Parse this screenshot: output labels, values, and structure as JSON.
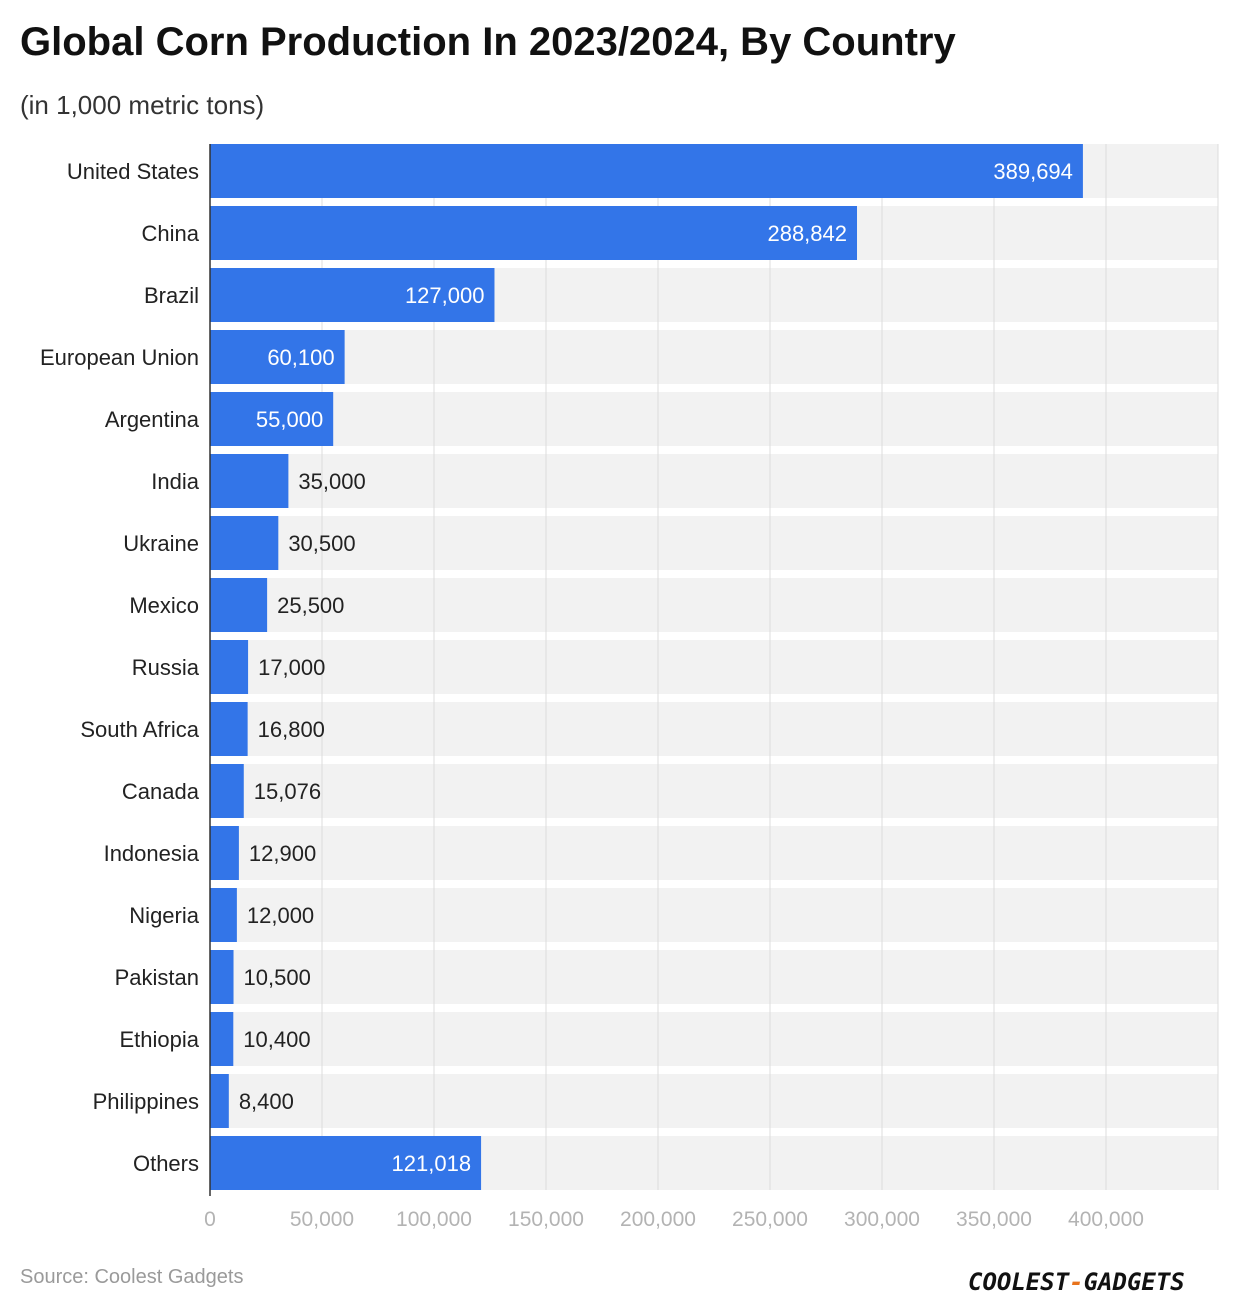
{
  "header": {
    "title": "Global Corn Production In 2023/2024, By Country",
    "subtitle": "(in 1,000 metric tons)"
  },
  "footer": {
    "source": "Source: Coolest Gadgets",
    "logo_left": "COOLEST",
    "logo_dash": "-",
    "logo_right": "GADGETS"
  },
  "colors": {
    "bar": "#3375e8",
    "band": "#f2f2f2",
    "grid": "#dcdcdc",
    "tick_label": "#b3b3b3",
    "label_inside": "#ffffff",
    "label_outside": "#222222",
    "logo_accent": "#e8731c"
  },
  "chart_data": {
    "type": "bar",
    "orientation": "horizontal",
    "title": "Global Corn Production In 2023/2024, By Country",
    "subtitle": "(in 1,000 metric tons)",
    "categories": [
      "United States",
      "China",
      "Brazil",
      "European Union",
      "Argentina",
      "India",
      "Ukraine",
      "Mexico",
      "Russia",
      "South Africa",
      "Canada",
      "Indonesia",
      "Nigeria",
      "Pakistan",
      "Ethiopia",
      "Philippines",
      "Others"
    ],
    "values": [
      389694,
      288842,
      127000,
      60100,
      55000,
      35000,
      30500,
      25500,
      17000,
      16800,
      15076,
      12900,
      12000,
      10500,
      10400,
      8400,
      121018
    ],
    "value_labels": [
      "389,694",
      "288,842",
      "127,000",
      "60,100",
      "55,000",
      "35,000",
      "30,500",
      "25,500",
      "17,000",
      "16,800",
      "15,076",
      "12,900",
      "12,000",
      "10,500",
      "10,400",
      "8,400",
      "121,018"
    ],
    "xlim": [
      0,
      450000
    ],
    "xticks": [
      0,
      50000,
      100000,
      150000,
      200000,
      250000,
      300000,
      350000,
      400000
    ],
    "xtick_labels": [
      "0",
      "50,000",
      "100,000",
      "150,000",
      "200,000",
      "250,000",
      "300,000",
      "350,000",
      "400,000"
    ],
    "xlabel": "",
    "ylabel": "",
    "grid": true,
    "legend": "none"
  }
}
